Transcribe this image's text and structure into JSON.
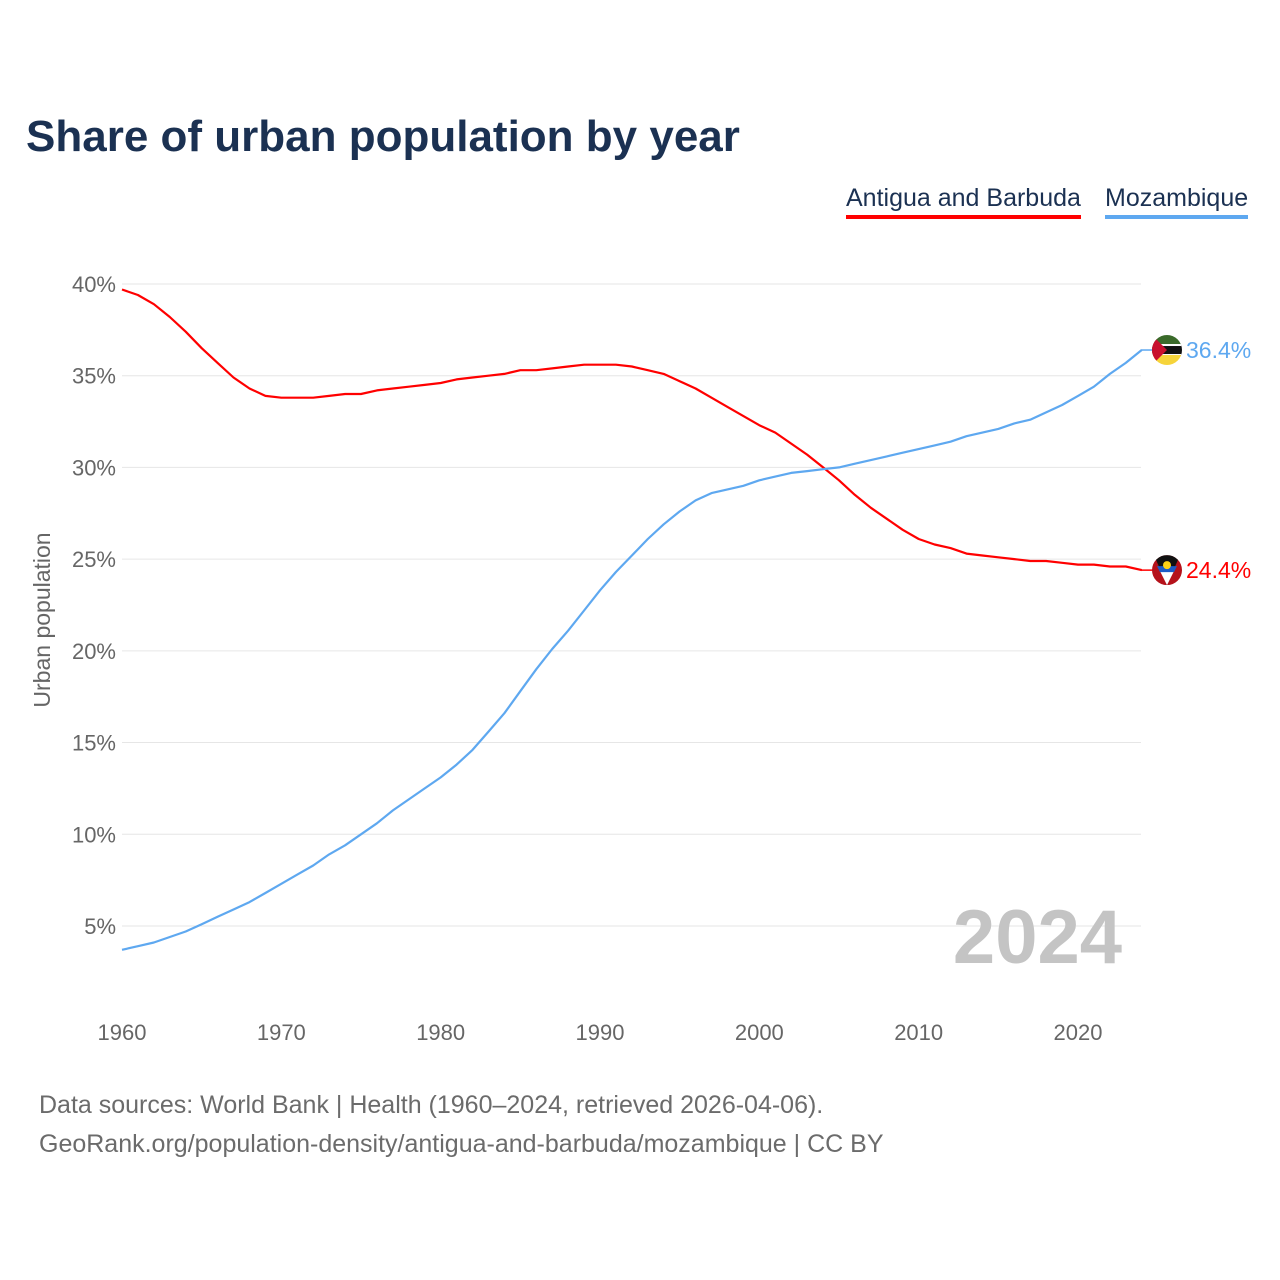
{
  "chart_data": {
    "type": "line",
    "title": "Share of urban population by year",
    "xlabel": "",
    "ylabel": "Urban population",
    "xlim": [
      1960,
      2024
    ],
    "ylim": [
      0,
      40
    ],
    "grid": true,
    "legend_position": "top-right",
    "x_ticks": [
      "1960",
      "1970",
      "1980",
      "1990",
      "2000",
      "2010",
      "2020"
    ],
    "y_ticks": [
      "5%",
      "10%",
      "15%",
      "20%",
      "25%",
      "30%",
      "35%",
      "40%"
    ],
    "year_annotation": "2024",
    "x": [
      1960,
      1961,
      1962,
      1963,
      1964,
      1965,
      1966,
      1967,
      1968,
      1969,
      1970,
      1971,
      1972,
      1973,
      1974,
      1975,
      1976,
      1977,
      1978,
      1979,
      1980,
      1981,
      1982,
      1983,
      1984,
      1985,
      1986,
      1987,
      1988,
      1989,
      1990,
      1991,
      1992,
      1993,
      1994,
      1995,
      1996,
      1997,
      1998,
      1999,
      2000,
      2001,
      2002,
      2003,
      2004,
      2005,
      2006,
      2007,
      2008,
      2009,
      2010,
      2011,
      2012,
      2013,
      2014,
      2015,
      2016,
      2017,
      2018,
      2019,
      2020,
      2021,
      2022,
      2023,
      2024
    ],
    "series": [
      {
        "name": "Antigua and Barbuda",
        "color": "#ff0000",
        "end_label": "24.4%",
        "values": [
          39.7,
          39.4,
          38.9,
          38.2,
          37.4,
          36.5,
          35.7,
          34.9,
          34.3,
          33.9,
          33.8,
          33.8,
          33.8,
          33.9,
          34.0,
          34.0,
          34.2,
          34.3,
          34.4,
          34.5,
          34.6,
          34.8,
          34.9,
          35.0,
          35.1,
          35.3,
          35.3,
          35.4,
          35.5,
          35.6,
          35.6,
          35.6,
          35.5,
          35.3,
          35.1,
          34.7,
          34.3,
          33.8,
          33.3,
          32.8,
          32.3,
          31.9,
          31.3,
          30.7,
          30.0,
          29.3,
          28.5,
          27.8,
          27.2,
          26.6,
          26.1,
          25.8,
          25.6,
          25.3,
          25.2,
          25.1,
          25.0,
          24.9,
          24.9,
          24.8,
          24.7,
          24.7,
          24.6,
          24.6,
          24.4
        ]
      },
      {
        "name": "Mozambique",
        "color": "#5ea8f0",
        "end_label": "36.4%",
        "values": [
          3.7,
          3.9,
          4.1,
          4.4,
          4.7,
          5.1,
          5.5,
          5.9,
          6.3,
          6.8,
          7.3,
          7.8,
          8.3,
          8.9,
          9.4,
          10.0,
          10.6,
          11.3,
          11.9,
          12.5,
          13.1,
          13.8,
          14.6,
          15.6,
          16.6,
          17.8,
          19.0,
          20.1,
          21.1,
          22.2,
          23.3,
          24.3,
          25.2,
          26.1,
          26.9,
          27.6,
          28.2,
          28.6,
          28.8,
          29.0,
          29.3,
          29.5,
          29.7,
          29.8,
          29.9,
          30.0,
          30.2,
          30.4,
          30.6,
          30.8,
          31.0,
          31.2,
          31.4,
          31.7,
          31.9,
          32.1,
          32.4,
          32.6,
          33.0,
          33.4,
          33.9,
          34.4,
          35.1,
          35.7,
          36.4
        ]
      }
    ]
  },
  "footer": {
    "line1": "Data sources: World Bank | Health (1960–2024, retrieved 2026-04-06).",
    "line2": "GeoRank.org/population-density/antigua-and-barbuda/mozambique | CC BY"
  }
}
